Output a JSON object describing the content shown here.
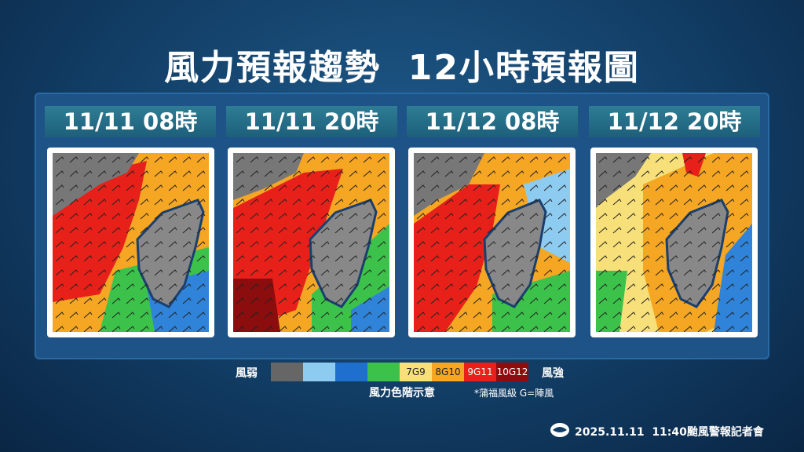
{
  "title": "風力預報趨勢  12小時預報圖",
  "panels": [
    {
      "label": "11/11 08時"
    },
    {
      "label": "11/11 20時"
    },
    {
      "label": "11/12 08時"
    },
    {
      "label": "11/12 20時"
    }
  ],
  "legend": {
    "weak": "風弱",
    "strong": "風強",
    "labels": [
      "7G9",
      "8G10",
      "9G11",
      "10G12"
    ],
    "caption": "風力色階示意",
    "note": "*蒲福風級 G=陣風"
  },
  "footer": "2025.11.11  11:40颱風警報記者會"
}
